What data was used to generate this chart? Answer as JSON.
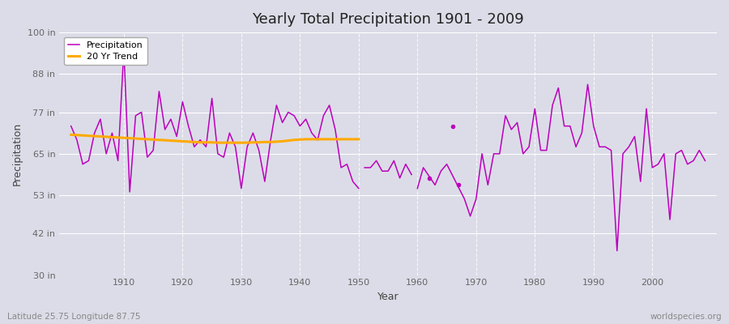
{
  "title": "Yearly Total Precipitation 1901 - 2009",
  "xlabel": "Year",
  "ylabel": "Precipitation",
  "subtitle_lat_lon": "Latitude 25.75 Longitude 87.75",
  "watermark": "worldspecies.org",
  "ylim": [
    30,
    100
  ],
  "yticks": [
    30,
    42,
    53,
    65,
    77,
    88,
    100
  ],
  "ytick_labels": [
    "30 in",
    "42 in",
    "53 in",
    "65 in",
    "77 in",
    "88 in",
    "100 in"
  ],
  "bg_color": "#dcdce8",
  "plot_bg_color": "#dcdce8",
  "precip_color": "#bb00bb",
  "trend_color": "#ffaa00",
  "precip_linewidth": 1.1,
  "trend_linewidth": 2.2,
  "years": [
    1901,
    1902,
    1903,
    1904,
    1905,
    1906,
    1907,
    1908,
    1909,
    1910,
    1911,
    1912,
    1913,
    1914,
    1915,
    1916,
    1917,
    1918,
    1919,
    1920,
    1921,
    1922,
    1923,
    1924,
    1925,
    1926,
    1927,
    1928,
    1929,
    1930,
    1931,
    1932,
    1933,
    1934,
    1935,
    1936,
    1937,
    1938,
    1939,
    1940,
    1941,
    1942,
    1943,
    1944,
    1945,
    1946,
    1947,
    1948,
    1949,
    1950
  ],
  "precip_seg1": [
    73,
    69,
    62,
    63,
    71,
    75,
    65,
    71,
    63,
    95,
    54,
    76,
    77,
    64,
    66,
    83,
    72,
    75,
    70,
    80,
    73,
    67,
    69,
    67,
    81,
    65,
    64,
    71,
    67,
    55,
    67,
    71,
    66,
    57,
    69,
    79,
    74,
    77,
    76,
    73,
    75,
    71,
    69,
    76,
    79,
    72,
    61,
    62,
    57,
    55
  ],
  "years2": [
    1951,
    1952,
    1953,
    1954,
    1955,
    1956,
    1957,
    1958,
    1959
  ],
  "precip_seg2": [
    61,
    61,
    63,
    60,
    60,
    63,
    58,
    62,
    59
  ],
  "isolated_1960": {
    "year": 1962,
    "value": 58
  },
  "isolated_1966": {
    "year": 1966,
    "value": 73
  },
  "isolated_1967": {
    "year": 1967,
    "value": 56
  },
  "years3": [
    1960,
    1961,
    1963,
    1964,
    1965,
    1968,
    1969,
    1970,
    1971,
    1972,
    1973,
    1974,
    1975,
    1976,
    1977,
    1978,
    1979,
    1980,
    1981,
    1982,
    1983,
    1984,
    1985,
    1986,
    1987,
    1988,
    1989,
    1990,
    1991,
    1992,
    1993,
    1994,
    1995,
    1996,
    1997,
    1998,
    1999,
    2000,
    2001,
    2002,
    2003,
    2004,
    2005,
    2006,
    2007,
    2008,
    2009
  ],
  "precip_seg3": [
    55,
    61,
    56,
    60,
    62,
    52,
    47,
    52,
    65,
    56,
    65,
    65,
    76,
    72,
    74,
    65,
    67,
    78,
    66,
    66,
    79,
    84,
    73,
    73,
    67,
    71,
    85,
    73,
    67,
    67,
    66,
    37,
    65,
    67,
    70,
    57,
    78,
    61,
    62,
    65,
    46,
    65,
    66,
    62,
    63,
    66,
    63
  ],
  "trend_years": [
    1901,
    1902,
    1903,
    1904,
    1905,
    1906,
    1907,
    1908,
    1909,
    1910,
    1911,
    1912,
    1913,
    1914,
    1915,
    1916,
    1917,
    1918,
    1919,
    1920,
    1921,
    1922,
    1923,
    1924,
    1925,
    1926,
    1927,
    1928,
    1929,
    1930,
    1931,
    1932,
    1933,
    1934,
    1935,
    1936,
    1937,
    1938,
    1939,
    1940,
    1941,
    1942,
    1943,
    1944,
    1945,
    1946,
    1947,
    1948,
    1949,
    1950
  ],
  "trend": [
    70.5,
    70.4,
    70.3,
    70.2,
    70.1,
    70.0,
    69.9,
    69.8,
    69.7,
    69.6,
    69.5,
    69.4,
    69.3,
    69.2,
    69.1,
    69.0,
    68.9,
    68.8,
    68.7,
    68.6,
    68.5,
    68.4,
    68.3,
    68.3,
    68.3,
    68.2,
    68.2,
    68.2,
    68.2,
    68.2,
    68.2,
    68.3,
    68.3,
    68.4,
    68.4,
    68.5,
    68.6,
    68.8,
    69.0,
    69.1,
    69.2,
    69.2,
    69.2,
    69.2,
    69.2,
    69.2,
    69.2,
    69.2,
    69.2,
    69.2
  ],
  "grid_color": "#ffffff",
  "tick_color": "#666666"
}
